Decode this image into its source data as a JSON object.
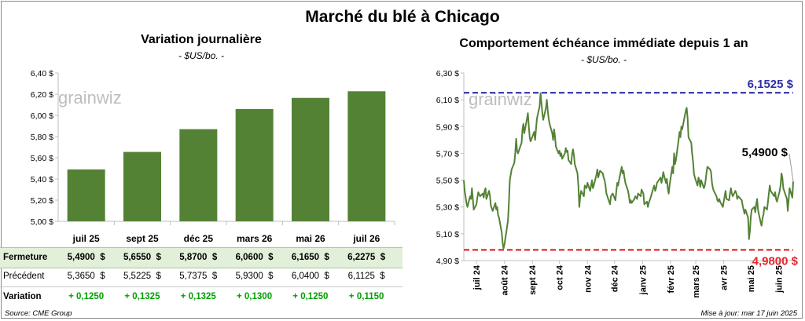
{
  "title": "Marché du blé à Chicago",
  "source": "Source: CME Group",
  "updated": "Mise à jour: mar 17 juin 2025",
  "watermark": "grainwiz",
  "colors": {
    "bar": "#548235",
    "line": "#548235",
    "high": "#2f2fa8",
    "low": "#e3262c",
    "band": "#e2efd9",
    "positive": "#00a000"
  },
  "chart_data": [
    {
      "type": "bar",
      "title": "Variation journalière",
      "subtitle": "- $US/bo. -",
      "categories": [
        "juil 25",
        "sept 25",
        "déc 25",
        "mars 26",
        "mai 26",
        "juil 26"
      ],
      "values": [
        5.49,
        5.655,
        5.87,
        6.06,
        6.165,
        6.2275
      ],
      "ylim": [
        5.0,
        6.4
      ],
      "yticks": [
        "5,00 $",
        "5,20 $",
        "5,40 $",
        "5,60 $",
        "5,80 $",
        "6,00 $",
        "6,20 $",
        "6,40 $"
      ],
      "grid": false
    },
    {
      "type": "table",
      "rows": [
        {
          "label": "Fermeture",
          "values": [
            "5,4900  $",
            "5,6550  $",
            "5,8700  $",
            "6,0600  $",
            "6,1650  $",
            "6,2275  $"
          ]
        },
        {
          "label": "Précédent",
          "values": [
            "5,3650  $",
            "5,5225  $",
            "5,7375  $",
            "5,9300  $",
            "6,0400  $",
            "6,1125  $"
          ]
        },
        {
          "label": "Variation",
          "values": [
            "+ 0,1250",
            "+ 0,1325",
            "+ 0,1325",
            "+ 0,1300",
            "+ 0,1250",
            "+ 0,1150"
          ]
        }
      ]
    },
    {
      "type": "line",
      "title": "Comportement échéance immédiate depuis 1 an",
      "subtitle": "- $US/bo. -",
      "ylim": [
        4.9,
        6.3
      ],
      "yticks": [
        "4,90 $",
        "5,10 $",
        "5,30 $",
        "5,50 $",
        "5,70 $",
        "5,90 $",
        "6,10 $",
        "6,30 $"
      ],
      "xticks": [
        "juil 24",
        "août 24",
        "sept 24",
        "oct 24",
        "nov 24",
        "déc 24",
        "janv 25",
        "févr 25",
        "mars 25",
        "avr 25",
        "mai 25",
        "juin 25"
      ],
      "x_start": "2024-06-17",
      "x_end": "2025-06-17",
      "high": {
        "value": 6.1525,
        "label": "6,1525 $"
      },
      "low": {
        "value": 4.98,
        "label": "4,9800 $"
      },
      "last": {
        "value": 5.49,
        "label": "5,4900 $"
      },
      "points": [
        [
          "2024-06-17",
          5.5
        ],
        [
          "2024-06-18",
          5.42
        ],
        [
          "2024-06-20",
          5.33
        ],
        [
          "2024-06-21",
          5.3
        ],
        [
          "2024-06-24",
          5.38
        ],
        [
          "2024-06-25",
          5.36
        ],
        [
          "2024-06-26",
          5.44
        ],
        [
          "2024-06-27",
          5.36
        ],
        [
          "2024-06-28",
          5.28
        ],
        [
          "2024-07-01",
          5.32
        ],
        [
          "2024-07-02",
          5.37
        ],
        [
          "2024-07-03",
          5.41
        ],
        [
          "2024-07-05",
          5.38
        ],
        [
          "2024-07-08",
          5.4
        ],
        [
          "2024-07-09",
          5.37
        ],
        [
          "2024-07-10",
          5.42
        ],
        [
          "2024-07-11",
          5.44
        ],
        [
          "2024-07-12",
          5.36
        ],
        [
          "2024-07-15",
          5.42
        ],
        [
          "2024-07-16",
          5.38
        ],
        [
          "2024-07-17",
          5.31
        ],
        [
          "2024-07-18",
          5.29
        ],
        [
          "2024-07-19",
          5.27
        ],
        [
          "2024-07-22",
          5.33
        ],
        [
          "2024-07-23",
          5.28
        ],
        [
          "2024-07-24",
          5.3
        ],
        [
          "2024-07-25",
          5.24
        ],
        [
          "2024-07-26",
          5.22
        ],
        [
          "2024-07-29",
          5.11
        ],
        [
          "2024-07-30",
          5.03
        ],
        [
          "2024-07-31",
          4.99
        ],
        [
          "2024-08-01",
          5.02
        ],
        [
          "2024-08-05",
          5.2
        ],
        [
          "2024-08-06",
          5.34
        ],
        [
          "2024-08-07",
          5.5
        ],
        [
          "2024-08-09",
          5.58
        ],
        [
          "2024-08-12",
          5.63
        ],
        [
          "2024-08-13",
          5.7
        ],
        [
          "2024-08-14",
          5.81
        ],
        [
          "2024-08-15",
          5.72
        ],
        [
          "2024-08-16",
          5.7
        ],
        [
          "2024-08-19",
          5.76
        ],
        [
          "2024-08-20",
          5.78
        ],
        [
          "2024-08-21",
          5.88
        ],
        [
          "2024-08-22",
          5.92
        ],
        [
          "2024-08-23",
          5.85
        ],
        [
          "2024-08-26",
          5.96
        ],
        [
          "2024-08-27",
          6.0
        ],
        [
          "2024-08-28",
          5.9
        ],
        [
          "2024-08-29",
          5.82
        ],
        [
          "2024-08-30",
          5.79
        ],
        [
          "2024-09-03",
          5.86
        ],
        [
          "2024-09-04",
          5.8
        ],
        [
          "2024-09-05",
          5.88
        ],
        [
          "2024-09-06",
          5.96
        ],
        [
          "2024-09-09",
          6.05
        ],
        [
          "2024-09-10",
          6.15
        ],
        [
          "2024-09-11",
          6.08
        ],
        [
          "2024-09-12",
          6.0
        ],
        [
          "2024-09-13",
          5.95
        ],
        [
          "2024-09-16",
          6.04
        ],
        [
          "2024-09-17",
          6.1
        ],
        [
          "2024-09-18",
          6.02
        ],
        [
          "2024-09-19",
          5.96
        ],
        [
          "2024-09-20",
          5.92
        ],
        [
          "2024-09-23",
          5.85
        ],
        [
          "2024-09-24",
          5.8
        ],
        [
          "2024-09-25",
          5.88
        ],
        [
          "2024-09-26",
          5.83
        ],
        [
          "2024-09-27",
          5.75
        ],
        [
          "2024-09-30",
          5.7
        ],
        [
          "2024-10-01",
          5.72
        ],
        [
          "2024-10-02",
          5.68
        ],
        [
          "2024-10-03",
          5.7
        ],
        [
          "2024-10-04",
          5.66
        ],
        [
          "2024-10-07",
          5.7
        ],
        [
          "2024-10-08",
          5.74
        ],
        [
          "2024-10-09",
          5.71
        ],
        [
          "2024-10-10",
          5.72
        ],
        [
          "2024-10-11",
          5.65
        ],
        [
          "2024-10-14",
          5.62
        ],
        [
          "2024-10-15",
          5.7
        ],
        [
          "2024-10-16",
          5.73
        ],
        [
          "2024-10-17",
          5.69
        ],
        [
          "2024-10-18",
          5.62
        ],
        [
          "2024-10-21",
          5.55
        ],
        [
          "2024-10-22",
          5.45
        ],
        [
          "2024-10-23",
          5.3
        ],
        [
          "2024-10-24",
          5.38
        ],
        [
          "2024-10-25",
          5.42
        ],
        [
          "2024-10-28",
          5.38
        ],
        [
          "2024-10-29",
          5.46
        ],
        [
          "2024-10-30",
          5.45
        ],
        [
          "2024-10-31",
          5.44
        ],
        [
          "2024-11-01",
          5.48
        ],
        [
          "2024-11-04",
          5.42
        ],
        [
          "2024-11-05",
          5.46
        ],
        [
          "2024-11-06",
          5.5
        ],
        [
          "2024-11-07",
          5.44
        ],
        [
          "2024-11-08",
          5.46
        ],
        [
          "2024-11-11",
          5.54
        ],
        [
          "2024-11-12",
          5.58
        ],
        [
          "2024-11-13",
          5.52
        ],
        [
          "2024-11-14",
          5.55
        ],
        [
          "2024-11-15",
          5.57
        ],
        [
          "2024-11-18",
          5.55
        ],
        [
          "2024-11-19",
          5.52
        ],
        [
          "2024-11-20",
          5.5
        ],
        [
          "2024-11-21",
          5.46
        ],
        [
          "2024-11-22",
          5.4
        ],
        [
          "2024-11-25",
          5.34
        ],
        [
          "2024-11-26",
          5.32
        ],
        [
          "2024-11-27",
          5.38
        ],
        [
          "2024-11-29",
          5.4
        ],
        [
          "2024-12-02",
          5.35
        ],
        [
          "2024-12-03",
          5.42
        ],
        [
          "2024-12-04",
          5.48
        ],
        [
          "2024-12-05",
          5.46
        ],
        [
          "2024-12-06",
          5.5
        ],
        [
          "2024-12-09",
          5.6
        ],
        [
          "2024-12-10",
          5.55
        ],
        [
          "2024-12-11",
          5.57
        ],
        [
          "2024-12-12",
          5.52
        ],
        [
          "2024-12-13",
          5.48
        ],
        [
          "2024-12-16",
          5.42
        ],
        [
          "2024-12-17",
          5.38
        ],
        [
          "2024-12-18",
          5.33
        ],
        [
          "2024-12-19",
          5.35
        ],
        [
          "2024-12-20",
          5.33
        ],
        [
          "2024-12-23",
          5.36
        ],
        [
          "2024-12-24",
          5.38
        ],
        [
          "2024-12-26",
          5.36
        ],
        [
          "2024-12-27",
          5.4
        ],
        [
          "2024-12-30",
          5.38
        ],
        [
          "2024-12-31",
          5.43
        ],
        [
          "2025-01-02",
          5.4
        ],
        [
          "2025-01-03",
          5.32
        ],
        [
          "2025-01-06",
          5.34
        ],
        [
          "2025-01-07",
          5.3
        ],
        [
          "2025-01-08",
          5.33
        ],
        [
          "2025-01-10",
          5.37
        ],
        [
          "2025-01-13",
          5.44
        ],
        [
          "2025-01-14",
          5.46
        ],
        [
          "2025-01-15",
          5.42
        ],
        [
          "2025-01-16",
          5.44
        ],
        [
          "2025-01-17",
          5.48
        ],
        [
          "2025-01-21",
          5.52
        ],
        [
          "2025-01-22",
          5.48
        ],
        [
          "2025-01-23",
          5.51
        ],
        [
          "2025-01-24",
          5.56
        ],
        [
          "2025-01-27",
          5.48
        ],
        [
          "2025-01-28",
          5.51
        ],
        [
          "2025-01-29",
          5.44
        ],
        [
          "2025-01-30",
          5.4
        ],
        [
          "2025-01-31",
          5.46
        ],
        [
          "2025-02-03",
          5.6
        ],
        [
          "2025-02-04",
          5.55
        ],
        [
          "2025-02-05",
          5.7
        ],
        [
          "2025-02-06",
          5.62
        ],
        [
          "2025-02-07",
          5.65
        ],
        [
          "2025-02-10",
          5.8
        ],
        [
          "2025-02-11",
          5.86
        ],
        [
          "2025-02-12",
          5.82
        ],
        [
          "2025-02-13",
          5.9
        ],
        [
          "2025-02-14",
          5.88
        ],
        [
          "2025-02-18",
          6.02
        ],
        [
          "2025-02-19",
          6.04
        ],
        [
          "2025-02-20",
          5.96
        ],
        [
          "2025-02-21",
          5.82
        ],
        [
          "2025-02-24",
          5.78
        ],
        [
          "2025-02-25",
          5.7
        ],
        [
          "2025-02-26",
          5.64
        ],
        [
          "2025-02-27",
          5.55
        ],
        [
          "2025-02-28",
          5.52
        ],
        [
          "2025-03-03",
          5.46
        ],
        [
          "2025-03-04",
          5.52
        ],
        [
          "2025-03-05",
          5.5
        ],
        [
          "2025-03-06",
          5.45
        ],
        [
          "2025-03-07",
          5.5
        ],
        [
          "2025-03-10",
          5.44
        ],
        [
          "2025-03-11",
          5.46
        ],
        [
          "2025-03-12",
          5.5
        ],
        [
          "2025-03-13",
          5.56
        ],
        [
          "2025-03-14",
          5.6
        ],
        [
          "2025-03-17",
          5.58
        ],
        [
          "2025-03-18",
          5.56
        ],
        [
          "2025-03-19",
          5.48
        ],
        [
          "2025-03-20",
          5.44
        ],
        [
          "2025-03-21",
          5.42
        ],
        [
          "2025-03-24",
          5.38
        ],
        [
          "2025-03-25",
          5.35
        ],
        [
          "2025-03-26",
          5.34
        ],
        [
          "2025-03-27",
          5.36
        ],
        [
          "2025-03-28",
          5.34
        ],
        [
          "2025-03-31",
          5.3
        ],
        [
          "2025-04-01",
          5.34
        ],
        [
          "2025-04-02",
          5.38
        ],
        [
          "2025-04-03",
          5.42
        ],
        [
          "2025-04-04",
          5.36
        ],
        [
          "2025-04-07",
          5.35
        ],
        [
          "2025-04-08",
          5.4
        ],
        [
          "2025-04-09",
          5.44
        ],
        [
          "2025-04-10",
          5.4
        ],
        [
          "2025-04-11",
          5.38
        ],
        [
          "2025-04-14",
          5.42
        ],
        [
          "2025-04-15",
          5.4
        ],
        [
          "2025-04-16",
          5.36
        ],
        [
          "2025-04-17",
          5.38
        ],
        [
          "2025-04-21",
          5.35
        ],
        [
          "2025-04-22",
          5.31
        ],
        [
          "2025-04-23",
          5.28
        ],
        [
          "2025-04-24",
          5.25
        ],
        [
          "2025-04-25",
          5.28
        ],
        [
          "2025-04-28",
          5.22
        ],
        [
          "2025-04-29",
          5.06
        ],
        [
          "2025-04-30",
          5.12
        ],
        [
          "2025-05-01",
          5.22
        ],
        [
          "2025-05-02",
          5.28
        ],
        [
          "2025-05-05",
          5.3
        ],
        [
          "2025-05-06",
          5.26
        ],
        [
          "2025-05-07",
          5.32
        ],
        [
          "2025-05-08",
          5.36
        ],
        [
          "2025-05-09",
          5.28
        ],
        [
          "2025-05-12",
          5.18
        ],
        [
          "2025-05-13",
          5.16
        ],
        [
          "2025-05-14",
          5.22
        ],
        [
          "2025-05-15",
          5.24
        ],
        [
          "2025-05-16",
          5.3
        ],
        [
          "2025-05-19",
          5.28
        ],
        [
          "2025-05-20",
          5.34
        ],
        [
          "2025-05-21",
          5.4
        ],
        [
          "2025-05-22",
          5.46
        ],
        [
          "2025-05-23",
          5.42
        ],
        [
          "2025-05-27",
          5.38
        ],
        [
          "2025-05-28",
          5.41
        ],
        [
          "2025-05-29",
          5.36
        ],
        [
          "2025-05-30",
          5.34
        ],
        [
          "2025-06-02",
          5.42
        ],
        [
          "2025-06-03",
          5.46
        ],
        [
          "2025-06-04",
          5.55
        ],
        [
          "2025-06-05",
          5.52
        ],
        [
          "2025-06-06",
          5.44
        ],
        [
          "2025-06-09",
          5.38
        ],
        [
          "2025-06-10",
          5.36
        ],
        [
          "2025-06-11",
          5.27
        ],
        [
          "2025-06-12",
          5.36
        ],
        [
          "2025-06-13",
          5.44
        ],
        [
          "2025-06-16",
          5.37
        ],
        [
          "2025-06-17",
          5.49
        ]
      ]
    }
  ]
}
